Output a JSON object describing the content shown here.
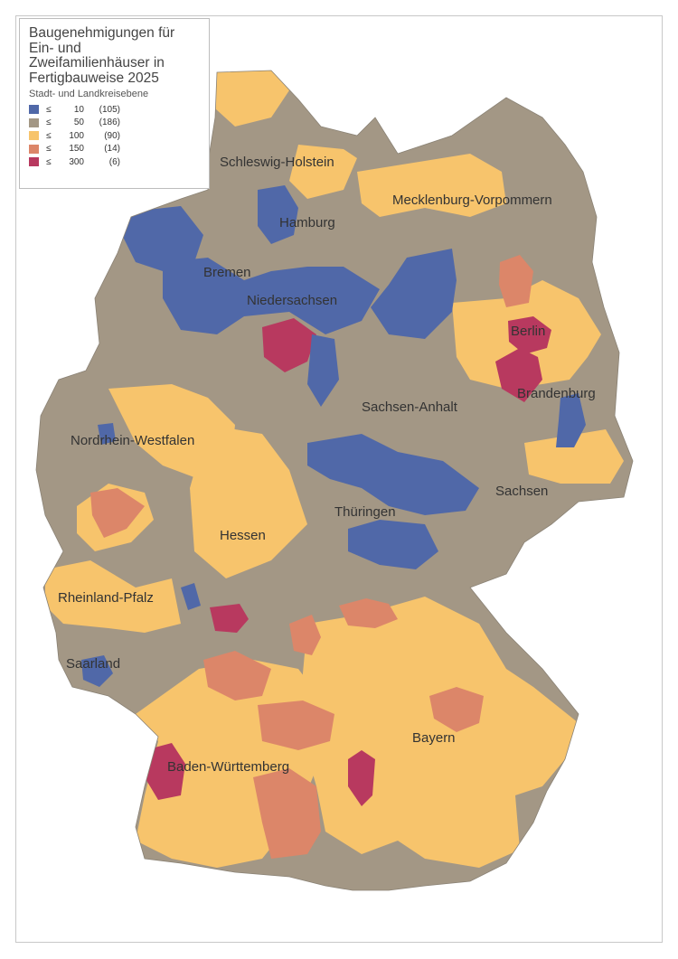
{
  "map": {
    "title": "Baugenehmigungen für\nEin- und\nZweifamilienhäuser in\nFertigbauweise 2025",
    "subtitle": "Stadt- und Landkreisebene",
    "legend": [
      {
        "symbol": "≤",
        "threshold": "10",
        "count": "(105)",
        "color": "#5068a8"
      },
      {
        "symbol": "≤",
        "threshold": "50",
        "count": "(186)",
        "color": "#a39785"
      },
      {
        "symbol": "≤",
        "threshold": "100",
        "count": "(90)",
        "color": "#f7c46c"
      },
      {
        "symbol": "≤",
        "threshold": "150",
        "count": "(14)",
        "color": "#dc8669"
      },
      {
        "symbol": "≤",
        "threshold": "300",
        "count": "(6)",
        "color": "#b8395f"
      }
    ],
    "states": [
      {
        "name": "Schleswig-Holstein"
      },
      {
        "name": "Mecklenburg-Vorpommern"
      },
      {
        "name": "Hamburg"
      },
      {
        "name": "Bremen"
      },
      {
        "name": "Niedersachsen"
      },
      {
        "name": "Berlin"
      },
      {
        "name": "Brandenburg"
      },
      {
        "name": "Sachsen-Anhalt"
      },
      {
        "name": "Nordrhein-Westfalen"
      },
      {
        "name": "Sachsen"
      },
      {
        "name": "Thüringen"
      },
      {
        "name": "Hessen"
      },
      {
        "name": "Rheinland-Pfalz"
      },
      {
        "name": "Saarland"
      },
      {
        "name": "Bayern"
      },
      {
        "name": "Baden-Württemberg"
      }
    ]
  }
}
